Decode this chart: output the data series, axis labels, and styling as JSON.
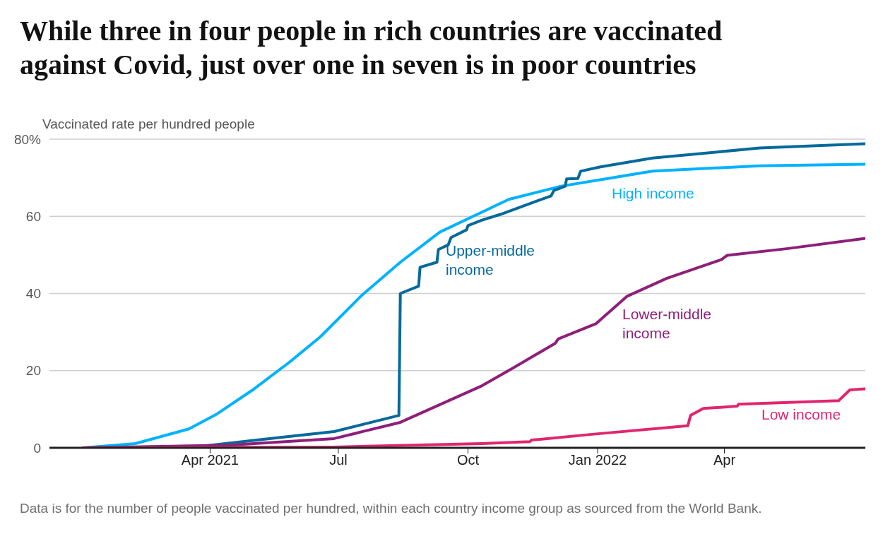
{
  "chart_data": {
    "type": "line",
    "title": "While three in four people in rich countries are vaccinated against Covid, just over one in seven is in poor countries",
    "ylabel": "Vaccinated rate per hundred people",
    "xlim": [
      "2020-12-08",
      "2022-07-10"
    ],
    "xticks": [
      {
        "value": "2021-04-01",
        "label": "Apr 2021"
      },
      {
        "value": "2021-07-01",
        "label": "Jul"
      },
      {
        "value": "2021-10-01",
        "label": "Oct"
      },
      {
        "value": "2022-01-01",
        "label": "Jan 2022"
      },
      {
        "value": "2022-04-01",
        "label": "Apr"
      }
    ],
    "ylim": [
      0,
      80
    ],
    "yticks": [
      0,
      20,
      40,
      60,
      {
        "value": 80,
        "label": "80%"
      }
    ],
    "grid": "y",
    "marker": "none",
    "line_style": "solid",
    "series": [
      {
        "name": "High income",
        "color": "#00b2ff",
        "x": [
          "2021-01-01",
          "2021-02-07",
          "2021-03-17",
          "2021-04-06",
          "2021-05-02",
          "2021-05-27",
          "2021-06-18",
          "2021-07-17",
          "2021-08-14",
          "2021-09-11",
          "2021-10-11",
          "2021-10-30",
          "2021-12-06",
          "2022-02-09",
          "2022-04-26",
          "2022-07-10"
        ],
        "values": [
          0,
          1.1,
          4.9,
          8.8,
          15.2,
          22.1,
          28.7,
          39.3,
          48.1,
          55.9,
          61.1,
          64.4,
          67.8,
          71.7,
          73.1,
          73.5
        ]
      },
      {
        "name": "Upper-middle income",
        "color": "#05699b",
        "x": [
          "2021-01-01",
          "2021-03-26",
          "2021-05-21",
          "2021-06-28",
          "2021-08-13",
          "2021-08-14",
          "2021-08-27",
          "2021-08-28",
          "2021-09-09",
          "2021-09-10",
          "2021-09-17",
          "2021-09-19",
          "2021-09-30",
          "2021-10-01",
          "2021-10-11",
          "2021-10-24",
          "2021-11-29",
          "2021-12-01",
          "2021-12-09",
          "2021-12-10",
          "2021-12-18",
          "2021-12-20",
          "2022-01-03",
          "2022-02-09",
          "2022-04-26",
          "2022-07-10"
        ],
        "values": [
          0,
          0.4,
          2.7,
          4.2,
          8.4,
          40.0,
          41.9,
          46.8,
          48.1,
          51.4,
          52.6,
          54.5,
          56.5,
          57.6,
          59.0,
          60.5,
          65.3,
          66.7,
          67.8,
          69.7,
          69.8,
          71.7,
          72.8,
          75.1,
          77.7,
          78.8
        ]
      },
      {
        "name": "Lower-middle income",
        "color": "#8e1f7a",
        "x": [
          "2021-01-01",
          "2021-04-14",
          "2021-06-28",
          "2021-08-14",
          "2021-10-11",
          "2021-11-02",
          "2021-12-02",
          "2021-12-04",
          "2021-12-31",
          "2022-01-22",
          "2022-02-19",
          "2022-03-30",
          "2022-04-03",
          "2022-05-15",
          "2022-07-10"
        ],
        "values": [
          0,
          0.7,
          2.4,
          6.6,
          16.1,
          20.7,
          27.1,
          28.2,
          32.2,
          39.3,
          43.9,
          48.8,
          49.9,
          51.6,
          54.3
        ]
      },
      {
        "name": "Low income",
        "color": "#e0266e",
        "x": [
          "2021-01-01",
          "2021-06-28",
          "2021-10-11",
          "2021-11-14",
          "2021-11-15",
          "2021-12-28",
          "2022-03-06",
          "2022-03-08",
          "2022-03-17",
          "2022-04-10",
          "2022-04-11",
          "2022-06-21",
          "2022-06-29",
          "2022-07-10"
        ],
        "values": [
          0,
          0.2,
          1.1,
          1.6,
          2.0,
          3.5,
          5.7,
          8.4,
          10.2,
          10.8,
          11.3,
          12.2,
          15.0,
          15.3
        ]
      }
    ],
    "annotations": [
      "Data is for the number of people vaccinated per hundred, within each country income group as sourced from the World Bank."
    ]
  }
}
